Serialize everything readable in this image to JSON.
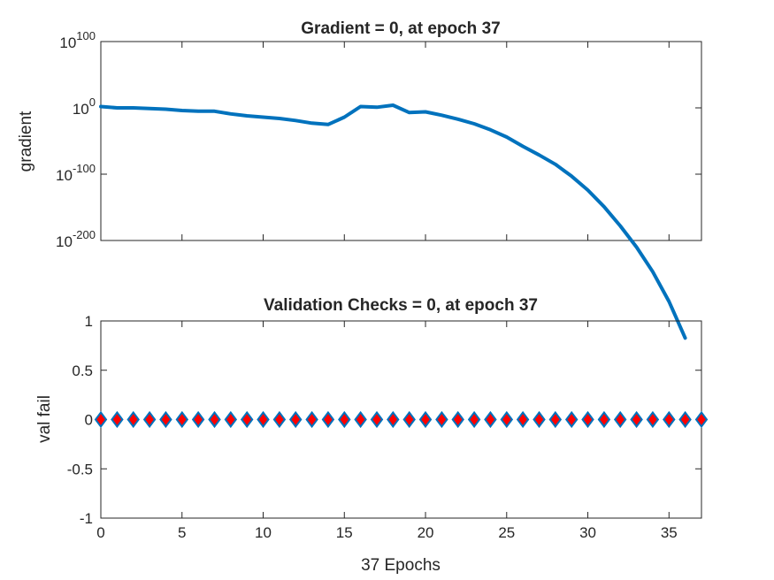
{
  "chart_data": [
    {
      "type": "line",
      "title": "Gradient = 0, at epoch 37",
      "xlabel": "",
      "ylabel": "gradient",
      "yscale": "log",
      "xlim": [
        0,
        37
      ],
      "ylim_exponent": [
        -200,
        100
      ],
      "ytick_exponents": [
        100,
        0,
        -100,
        -200
      ],
      "ytick_labels": [
        {
          "base": "10",
          "exp": "100"
        },
        {
          "base": "10",
          "exp": "0"
        },
        {
          "base": "10",
          "exp": "-100"
        },
        {
          "base": "10",
          "exp": "-200"
        }
      ],
      "grid": false,
      "color": "#0072BD",
      "series": [
        {
          "x": [
            0,
            1,
            2,
            3,
            4,
            5,
            6,
            7,
            8,
            9,
            10,
            11,
            12,
            13,
            14,
            15,
            16,
            17,
            18,
            19,
            20,
            21,
            22,
            23,
            24,
            25,
            26,
            27,
            28,
            29,
            30,
            31,
            32,
            33,
            34,
            35,
            36
          ],
          "log10_y": [
            2,
            0,
            0,
            -1,
            -2,
            -4,
            -5,
            -5,
            -9,
            -12,
            -14,
            -16,
            -19,
            -23,
            -25,
            -14,
            2,
            1,
            4,
            -7,
            -6,
            -11,
            -17,
            -24,
            -33,
            -44,
            -58,
            -71,
            -85,
            -103,
            -124,
            -149,
            -178,
            -210,
            -247,
            -292,
            -347
          ]
        }
      ]
    },
    {
      "type": "scatter",
      "title": "Validation Checks = 0, at epoch 37",
      "xlabel": "37 Epochs",
      "ylabel": "val fail",
      "xlim": [
        0,
        37
      ],
      "ylim": [
        -1,
        1
      ],
      "xticks": [
        0,
        5,
        10,
        15,
        20,
        25,
        30,
        35
      ],
      "yticks": [
        1,
        0.5,
        0,
        -0.5,
        -1
      ],
      "ytick_labels": [
        "1",
        "0.5",
        "0",
        "-0.5",
        "-1"
      ],
      "marker": "diamond",
      "marker_edge_color": "#0072BD",
      "marker_face_color": "#FF0000",
      "grid": false,
      "series": [
        {
          "x": [
            0,
            1,
            2,
            3,
            4,
            5,
            6,
            7,
            8,
            9,
            10,
            11,
            12,
            13,
            14,
            15,
            16,
            17,
            18,
            19,
            20,
            21,
            22,
            23,
            24,
            25,
            26,
            27,
            28,
            29,
            30,
            31,
            32,
            33,
            34,
            35,
            36,
            37
          ],
          "y": [
            0,
            0,
            0,
            0,
            0,
            0,
            0,
            0,
            0,
            0,
            0,
            0,
            0,
            0,
            0,
            0,
            0,
            0,
            0,
            0,
            0,
            0,
            0,
            0,
            0,
            0,
            0,
            0,
            0,
            0,
            0,
            0,
            0,
            0,
            0,
            0,
            0,
            0
          ]
        }
      ]
    }
  ]
}
